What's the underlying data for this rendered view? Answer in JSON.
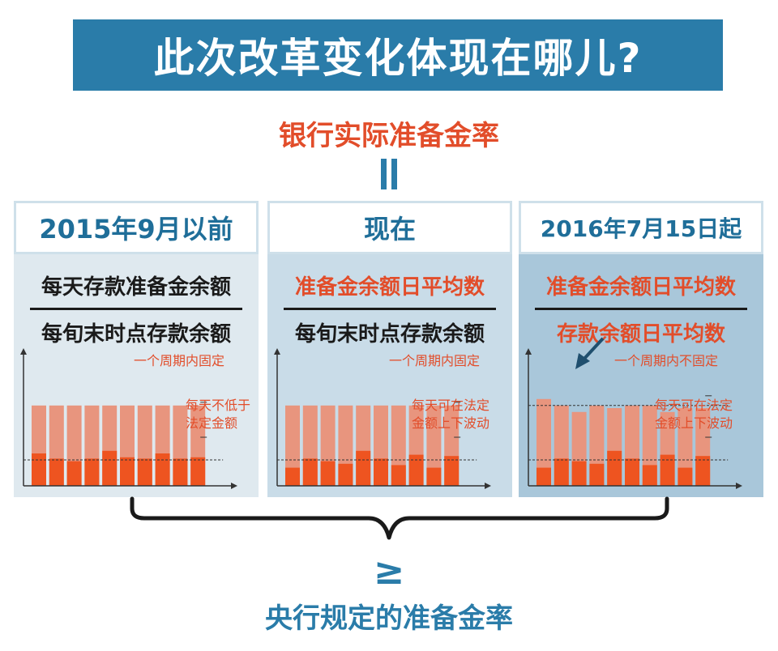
{
  "title": "此次改革变化体现在哪儿?",
  "formula_top": "银行实际准备金率",
  "formula_bottom": "央行规定的准备金率",
  "comparison_symbol": "≥",
  "colors": {
    "accent_blue": "#2a7ca9",
    "accent_red": "#e24d2a",
    "bar_light": "#e8957e",
    "bar_dark": "#ee5420"
  },
  "panels": [
    {
      "header": "2015年9月以前",
      "numerator": "每天存款准备金余额",
      "denominator": "每旬末时点存款余额",
      "callout_top": "一个周期内固定",
      "callout_bottom": [
        "每天不低于",
        "法定金额"
      ],
      "total_heights": [
        0.62,
        0.62,
        0.62,
        0.62,
        0.62,
        0.62,
        0.62,
        0.62,
        0.62,
        0.62
      ],
      "reserve_heights": [
        0.25,
        0.21,
        0.19,
        0.21,
        0.27,
        0.22,
        0.21,
        0.25,
        0.21,
        0.22
      ]
    },
    {
      "header": "现在",
      "numerator": "准备金余额日平均数",
      "denominator": "每旬末时点存款余额",
      "callout_top": "一个周期内固定",
      "callout_bottom": [
        "每天可在法定",
        "金额上下波动"
      ],
      "total_heights": [
        0.62,
        0.62,
        0.62,
        0.62,
        0.62,
        0.62,
        0.62,
        0.62,
        0.62,
        0.62
      ],
      "reserve_heights": [
        0.14,
        0.21,
        0.19,
        0.17,
        0.27,
        0.21,
        0.16,
        0.24,
        0.14,
        0.23
      ]
    },
    {
      "header": "2016年7月15日起",
      "numerator": "准备金余额日平均数",
      "denominator": "存款余额日平均数",
      "callout_top": "一个周期内不固定",
      "callout_bottom": [
        "每天可在法定",
        "金额上下波动"
      ],
      "total_heights": [
        0.67,
        0.62,
        0.57,
        0.62,
        0.6,
        0.62,
        0.62,
        0.57,
        0.6,
        0.6
      ],
      "reserve_heights": [
        0.14,
        0.21,
        0.19,
        0.17,
        0.27,
        0.21,
        0.16,
        0.24,
        0.14,
        0.23
      ]
    }
  ]
}
